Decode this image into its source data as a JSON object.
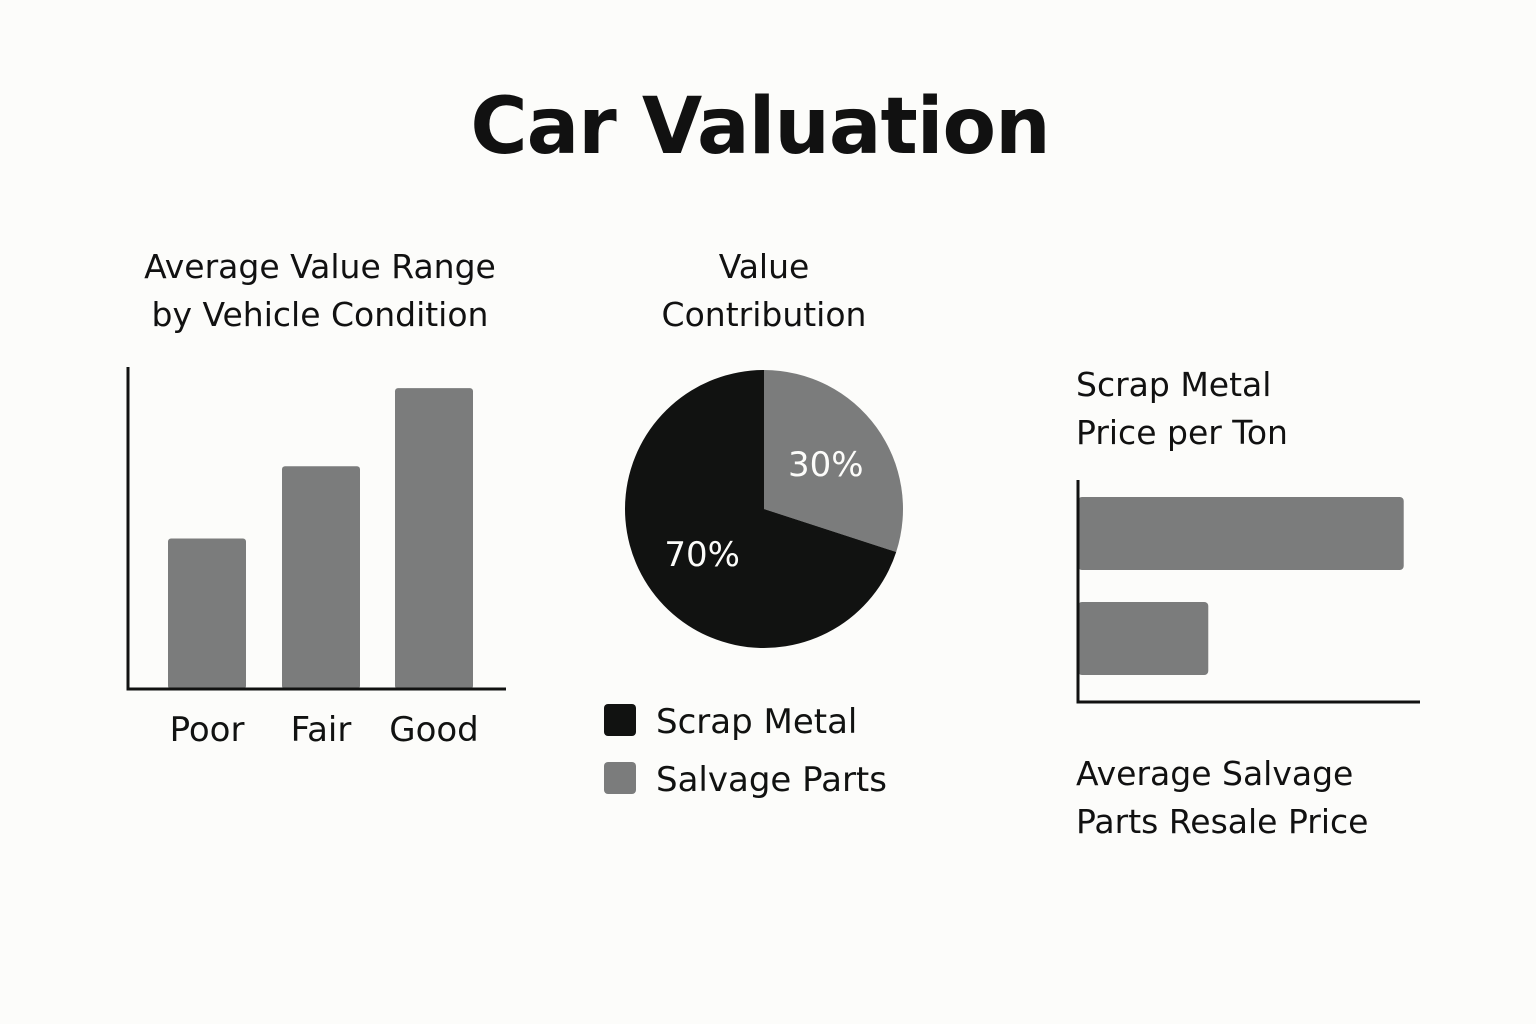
{
  "title": "Car Valuation",
  "colors": {
    "bar": "#7b7c7c",
    "dark": "#111211",
    "background": "#fcfcfa"
  },
  "chart_data": [
    {
      "type": "bar",
      "title_lines": [
        "Average Value Range",
        "by Vehicle Condition"
      ],
      "categories": [
        "Poor",
        "Fair",
        "Good"
      ],
      "values": [
        0.5,
        0.74,
        1.0
      ],
      "ylim": [
        0,
        1.07
      ],
      "grid": false
    },
    {
      "type": "pie",
      "title_lines": [
        "Value",
        "Contribution"
      ],
      "slices": [
        {
          "name": "Salvage Parts",
          "value": 30,
          "label": "30%",
          "color": "#7b7c7c"
        },
        {
          "name": "Scrap Metal",
          "value": 70,
          "label": "70%",
          "color": "#111211"
        }
      ],
      "legend": [
        "Scrap Metal",
        "Salvage Parts"
      ],
      "legend_placement": "bottom"
    },
    {
      "type": "bar",
      "orientation": "horizontal",
      "title_lines": [
        "Scrap Metal",
        "Price per Ton"
      ],
      "footer_lines": [
        "Average Salvage",
        "Parts Resale Price"
      ],
      "values": [
        1.0,
        0.4
      ],
      "xlim": [
        0,
        1.05
      ],
      "grid": false
    }
  ]
}
